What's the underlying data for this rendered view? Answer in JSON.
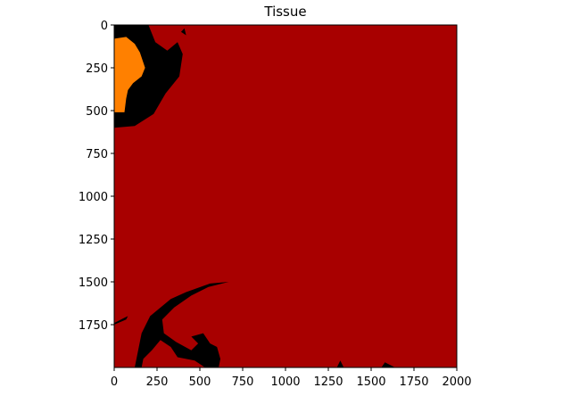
{
  "chart_data": {
    "type": "heatmap",
    "title": "Tissue",
    "xlabel": "",
    "ylabel": "",
    "xlim": [
      0,
      2000
    ],
    "ylim": [
      2000,
      0
    ],
    "x_ticks": [
      0,
      250,
      500,
      750,
      1000,
      1250,
      1500,
      1750,
      2000
    ],
    "y_ticks": [
      0,
      250,
      500,
      750,
      1000,
      1250,
      1500,
      1750
    ],
    "x_tick_labels": [
      "0",
      "250",
      "500",
      "750",
      "1000",
      "1250",
      "1500",
      "1750",
      "2000"
    ],
    "y_tick_labels": [
      "0",
      "250",
      "500",
      "750",
      "1000",
      "1250",
      "1500",
      "1750"
    ],
    "grid": false,
    "background_color": "#a80000",
    "regions": [
      {
        "name": "background",
        "color": "#000000",
        "polygons": [
          [
            [
              0,
              0
            ],
            [
              200,
              0
            ],
            [
              240,
              100
            ],
            [
              310,
              150
            ],
            [
              370,
              100
            ],
            [
              400,
              170
            ],
            [
              380,
              300
            ],
            [
              300,
              400
            ],
            [
              230,
              520
            ],
            [
              120,
              590
            ],
            [
              0,
              600
            ]
          ],
          [
            [
              390,
              40
            ],
            [
              410,
              20
            ],
            [
              420,
              60
            ]
          ],
          [
            [
              0,
              1740
            ],
            [
              60,
              1710
            ],
            [
              80,
              1700
            ],
            [
              70,
              1720
            ],
            [
              0,
              1750
            ]
          ],
          [
            [
              120,
              2000
            ],
            [
              160,
              1800
            ],
            [
              210,
              1700
            ],
            [
              330,
              1600
            ],
            [
              420,
              1560
            ],
            [
              560,
              1510
            ],
            [
              670,
              1500
            ],
            [
              550,
              1530
            ],
            [
              450,
              1580
            ],
            [
              350,
              1650
            ],
            [
              280,
              1720
            ],
            [
              290,
              1800
            ],
            [
              360,
              1850
            ],
            [
              450,
              1900
            ],
            [
              490,
              1860
            ],
            [
              450,
              1820
            ],
            [
              520,
              1800
            ],
            [
              560,
              1860
            ],
            [
              600,
              1880
            ],
            [
              620,
              1950
            ],
            [
              610,
              2000
            ],
            [
              530,
              2000
            ],
            [
              470,
              1960
            ],
            [
              370,
              1940
            ],
            [
              330,
              1880
            ],
            [
              270,
              1840
            ],
            [
              220,
              1900
            ],
            [
              170,
              1950
            ],
            [
              160,
              2000
            ]
          ],
          [
            [
              1300,
              2000
            ],
            [
              1320,
              1960
            ],
            [
              1340,
              2000
            ]
          ],
          [
            [
              1560,
              2000
            ],
            [
              1580,
              1970
            ],
            [
              1640,
              2000
            ]
          ]
        ]
      },
      {
        "name": "tissue-orange",
        "color": "#ff8000",
        "polygons": [
          [
            [
              0,
              80
            ],
            [
              70,
              70
            ],
            [
              120,
              110
            ],
            [
              150,
              160
            ],
            [
              180,
              250
            ],
            [
              160,
              300
            ],
            [
              110,
              340
            ],
            [
              80,
              380
            ],
            [
              70,
              430
            ],
            [
              60,
              510
            ],
            [
              0,
              510
            ]
          ]
        ]
      }
    ]
  }
}
